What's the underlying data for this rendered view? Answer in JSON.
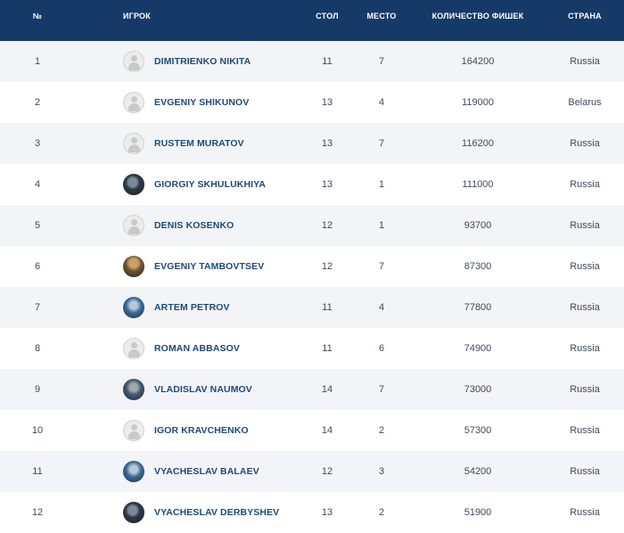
{
  "columns": {
    "num": "№",
    "player": "игрок",
    "table": "стол",
    "seat": "место",
    "chips": "количество фишек",
    "country": "страна"
  },
  "rows": [
    {
      "num": "1",
      "name": "DIMITRIENKO NIKITA",
      "avatar": "default-avatar-icon",
      "table": "11",
      "seat": "7",
      "chips": "164200",
      "country": "Russia"
    },
    {
      "num": "2",
      "name": "EVGENIY SHIKUNOV",
      "avatar": "default-avatar-icon",
      "table": "13",
      "seat": "4",
      "chips": "119000",
      "country": "Belarus"
    },
    {
      "num": "3",
      "name": "RUSTEM MURATOV",
      "avatar": "default-avatar-icon",
      "table": "13",
      "seat": "7",
      "chips": "116200",
      "country": "Russia"
    },
    {
      "num": "4",
      "name": "GIORGIY SKHULUKHIYA",
      "avatar": "player-photo",
      "table": "13",
      "seat": "1",
      "chips": "111000",
      "country": "Russia"
    },
    {
      "num": "5",
      "name": "DENIS KOSENKO",
      "avatar": "default-avatar-icon",
      "table": "12",
      "seat": "1",
      "chips": "93700",
      "country": "Russia"
    },
    {
      "num": "6",
      "name": "EVGENIY TAMBOVTSEV",
      "avatar": "player-photo",
      "table": "12",
      "seat": "7",
      "chips": "87300",
      "country": "Russia"
    },
    {
      "num": "7",
      "name": "ARTEM PETROV",
      "avatar": "player-photo",
      "table": "11",
      "seat": "4",
      "chips": "77800",
      "country": "Russia"
    },
    {
      "num": "8",
      "name": "ROMAN ABBASOV",
      "avatar": "default-avatar-icon",
      "table": "11",
      "seat": "6",
      "chips": "74900",
      "country": "Russia"
    },
    {
      "num": "9",
      "name": "VLADISLAV NAUMOV",
      "avatar": "player-photo",
      "table": "14",
      "seat": "7",
      "chips": "73000",
      "country": "Russia"
    },
    {
      "num": "10",
      "name": "IGOR KRAVCHENKO",
      "avatar": "default-avatar-icon",
      "table": "14",
      "seat": "2",
      "chips": "57300",
      "country": "Russia"
    },
    {
      "num": "11",
      "name": "VYACHESLAV BALAEV",
      "avatar": "player-photo",
      "table": "12",
      "seat": "3",
      "chips": "54200",
      "country": "Russia"
    },
    {
      "num": "12",
      "name": "VYACHESLAV DERBYSHEV",
      "avatar": "player-photo",
      "table": "13",
      "seat": "2",
      "chips": "51900",
      "country": "Russia"
    }
  ],
  "colors": {
    "header_bg": "#163a68",
    "row_alt_bg": "#f3f4f7",
    "name_color": "#1d4a7a"
  }
}
